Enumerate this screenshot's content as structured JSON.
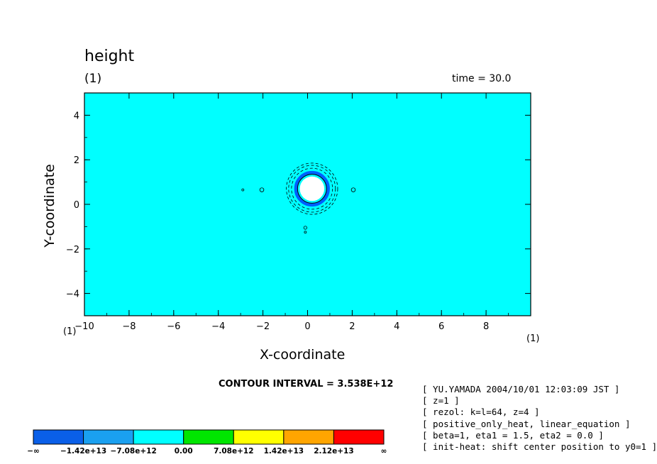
{
  "header": {
    "title": "height",
    "panel_left": "(1)",
    "panel_right": "time = 30.0"
  },
  "axes": {
    "x_unit_left": "(1)",
    "x_unit_right": "(1)",
    "contour_interval": "CONTOUR INTERVAL = 3.538E+12"
  },
  "chart_data": {
    "type": "heatmap",
    "title": "height",
    "xlabel": "X-coordinate",
    "ylabel": "Y-coordinate",
    "xlim": [
      -10,
      10
    ],
    "ylim": [
      -5,
      5
    ],
    "x_ticks": [
      -10,
      -8,
      -6,
      -4,
      -2,
      0,
      2,
      4,
      6,
      8
    ],
    "x_tick_labels": [
      "−10",
      "−8",
      "−6",
      "−4",
      "−2",
      "0",
      "2",
      "4",
      "6",
      "8"
    ],
    "y_ticks": [
      -4,
      -2,
      0,
      2,
      4
    ],
    "y_tick_labels": [
      "−4",
      "−2",
      "0",
      "2",
      "4"
    ],
    "background_color": "#00ffff",
    "features": [
      {
        "kind": "positive-core",
        "center": [
          0.2,
          0.7
        ],
        "radius": 0.55,
        "color": "#ffffff"
      },
      {
        "kind": "negative-ring",
        "center": [
          0.2,
          0.7
        ],
        "radius": 0.72,
        "color": "#0060ff"
      },
      {
        "kind": "contours-dashed",
        "center": [
          0.2,
          0.7
        ],
        "radii": [
          0.92,
          1.05,
          1.15
        ]
      },
      {
        "kind": "contour-solid",
        "center": [
          0.2,
          0.7
        ],
        "radius": 0.65
      }
    ],
    "small_contours": [
      {
        "x": -2.9,
        "y": 0.65,
        "r": 0.04
      },
      {
        "x": -2.05,
        "y": 0.65,
        "r": 0.09
      },
      {
        "x": 2.05,
        "y": 0.65,
        "r": 0.09
      },
      {
        "x": -0.1,
        "y": -1.05,
        "r": 0.07
      },
      {
        "x": -0.1,
        "y": -1.25,
        "r": 0.04
      }
    ],
    "colorbar": {
      "colors": [
        "#0a5fe8",
        "#1aa0f0",
        "#00ffff",
        "#00e600",
        "#ffff00",
        "#ffa500",
        "#ff0000"
      ],
      "labels": [
        "−∞",
        "−1.42e+13",
        "−7.08e+12",
        "0.00",
        "7.08e+12",
        "1.42e+13",
        "2.12e+13",
        "∞"
      ]
    }
  },
  "notes": [
    "[ YU.YAMADA 2004/10/01 12:03:09 JST ]",
    "[ z=1 ]",
    "[ rezol: k=l=64, z=4 ]",
    "[ positive_only_heat, linear_equation ]",
    "[ beta=1, eta1 = 1.5, eta2 = 0.0 ]",
    "[ init-heat: shift center position to y0=1 ]"
  ]
}
